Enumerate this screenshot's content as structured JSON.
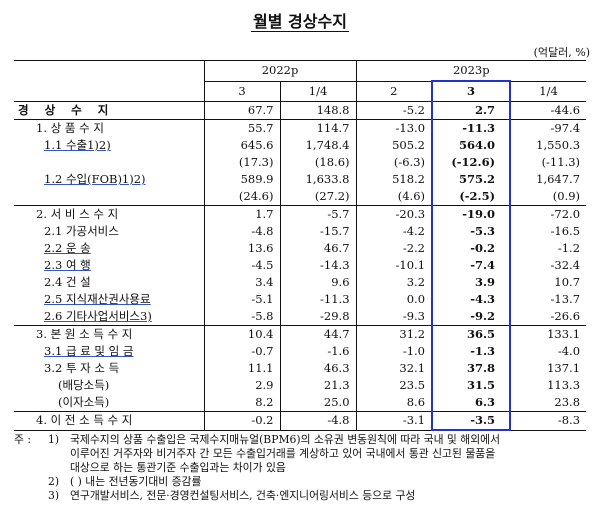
{
  "title": "월별 경상수지",
  "unit": "(억달러, %)",
  "header": {
    "year_2022": "2022p",
    "year_2023": "2023p",
    "months": [
      "3",
      "1/4",
      "2",
      "3",
      "1/4"
    ]
  },
  "rows": [
    {
      "label": "경 상 수 지",
      "values": [
        "67.7",
        "148.8",
        "-5.2",
        "2.7",
        "-44.6"
      ],
      "bold": true
    },
    {
      "label": "1. 상 품 수 지",
      "values": [
        "55.7",
        "114.7",
        "-13.0",
        "-11.3",
        "-97.4"
      ]
    },
    {
      "label": "1.1 수출1)2)",
      "values": [
        "645.6",
        "1,748.4",
        "505.2",
        "564.0",
        "1,550.3"
      ]
    },
    {
      "label": "",
      "values": [
        "(17.3)",
        "(18.6)",
        "(-6.3)",
        "(-12.6)",
        "(-11.3)"
      ]
    },
    {
      "label": "1.2 수입(FOB)1)2)",
      "values": [
        "589.9",
        "1,633.8",
        "518.2",
        "575.2",
        "1,647.7"
      ]
    },
    {
      "label": "",
      "values": [
        "(24.6)",
        "(27.2)",
        "(4.6)",
        "(-2.5)",
        "(0.9)"
      ]
    },
    {
      "label": "2. 서 비 스 수 지",
      "values": [
        "1.7",
        "-5.7",
        "-20.3",
        "-19.0",
        "-72.0"
      ]
    },
    {
      "label": "2.1 가공서비스",
      "values": [
        "-4.8",
        "-15.7",
        "-4.2",
        "-5.3",
        "-16.5"
      ]
    },
    {
      "label": "2.2 운 송",
      "values": [
        "13.6",
        "46.7",
        "-2.2",
        "-0.2",
        "-1.2"
      ]
    },
    {
      "label": "2.3 여 행",
      "values": [
        "-4.5",
        "-14.3",
        "-10.1",
        "-7.4",
        "-32.4"
      ]
    },
    {
      "label": "2.4 건 설",
      "values": [
        "3.4",
        "9.6",
        "3.2",
        "3.9",
        "10.7"
      ]
    },
    {
      "label": "2.5 지식재산권사용료",
      "values": [
        "-5.1",
        "-11.3",
        "0.0",
        "-4.3",
        "-13.7"
      ]
    },
    {
      "label": "2.6 기타사업서비스3)",
      "values": [
        "-5.8",
        "-29.8",
        "-9.3",
        "-9.2",
        "-26.6"
      ]
    },
    {
      "label": "3. 본 원 소 득 수 지",
      "values": [
        "10.4",
        "44.7",
        "31.2",
        "36.5",
        "133.1"
      ]
    },
    {
      "label": "3.1 급 료 및 임 금",
      "values": [
        "-0.7",
        "-1.6",
        "-1.0",
        "-1.3",
        "-4.0"
      ]
    },
    {
      "label": "3.2 투 자 소 득",
      "values": [
        "11.1",
        "46.3",
        "32.1",
        "37.8",
        "137.1"
      ]
    },
    {
      "label": "(배당소득)",
      "values": [
        "2.9",
        "21.3",
        "23.5",
        "31.5",
        "113.3"
      ]
    },
    {
      "label": "(이자소득)",
      "values": [
        "8.2",
        "25.0",
        "8.6",
        "6.3",
        "23.8"
      ]
    },
    {
      "label": "4. 이 전 소 득 수 지",
      "values": [
        "-0.2",
        "-4.8",
        "-3.1",
        "-3.5",
        "-8.3"
      ]
    }
  ],
  "notes": {
    "prefix": "주 :",
    "items": [
      {
        "idx": "1)",
        "lines": [
          "국제수지의 상품 수출입은 국제수지매뉴얼(BPM6)의 소유권 변동원칙에 따라 국내 및 해외에서",
          "이루어진 거주자와 비거주자 간 모든 수출입거래를 계상하고 있어 국내에서 통관 신고된 물품을",
          "대상으로 하는 통관기준 수출입과는 차이가 있음"
        ]
      },
      {
        "idx": "2)",
        "lines": [
          "( ) 내는 전년동기대비 증감률"
        ]
      },
      {
        "idx": "3)",
        "lines": [
          "연구개발서비스, 전문·경영컨설팅서비스, 건축·엔지니어링서비스 등으로 구성"
        ]
      }
    ]
  }
}
